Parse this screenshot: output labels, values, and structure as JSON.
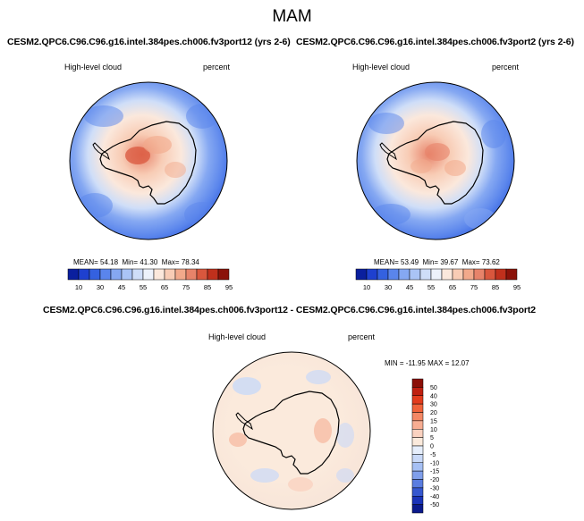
{
  "figure": {
    "title": "MAM"
  },
  "panels": [
    {
      "title": "CESM2.QPC6.C96.C96.g16.intel.384pes.ch006.fv3port12 (yrs 2-6)",
      "variable": "High-level cloud",
      "units": "percent",
      "stats": {
        "mean_label": "MEAN=",
        "mean": "54.18",
        "min_label": "Min=",
        "min": "41.30",
        "max_label": "Max=",
        "max": "78.34"
      },
      "colorbar": {
        "labels": [
          "10",
          "30",
          "45",
          "55",
          "65",
          "75",
          "85",
          "95"
        ],
        "colors": [
          "#0a1f9e",
          "#1e40cf",
          "#3461e0",
          "#5a85ec",
          "#85a8f2",
          "#aac4f6",
          "#cfdef8",
          "#edf2fb",
          "#fbe8dc",
          "#f8ccb5",
          "#f2a98b",
          "#e7836a",
          "#d9573d",
          "#c0301c",
          "#8b1209"
        ]
      }
    },
    {
      "title": "CESM2.QPC6.C96.C96.g16.intel.384pes.ch006.fv3port2 (yrs 2-6)",
      "variable": "High-level cloud",
      "units": "percent",
      "stats": {
        "mean_label": "MEAN=",
        "mean": "53.49",
        "min_label": "Min=",
        "min": "39.67",
        "max_label": "Max=",
        "max": "73.62"
      },
      "colorbar": {
        "labels": [
          "10",
          "30",
          "45",
          "55",
          "65",
          "75",
          "85",
          "95"
        ],
        "colors": [
          "#0a1f9e",
          "#1e40cf",
          "#3461e0",
          "#5a85ec",
          "#85a8f2",
          "#aac4f6",
          "#cfdef8",
          "#edf2fb",
          "#fbe8dc",
          "#f8ccb5",
          "#f2a98b",
          "#e7836a",
          "#d9573d",
          "#c0301c",
          "#8b1209"
        ]
      }
    },
    {
      "title": "CESM2.QPC6.C96.C96.g16.intel.384pes.ch006.fv3port12 - CESM2.QPC6.C96.C96.g16.intel.384pes.ch006.fv3port2",
      "variable": "High-level cloud",
      "units": "percent",
      "stats": {
        "text": "MIN = -11.95  MAX =  12.07"
      },
      "colorbar": {
        "labels": [
          "50",
          "40",
          "30",
          "20",
          "15",
          "10",
          "5",
          "0",
          "-5",
          "-10",
          "-15",
          "-20",
          "-30",
          "-40",
          "-50"
        ],
        "colors": [
          "#8b0f07",
          "#bf1f10",
          "#e23b1d",
          "#f0623a",
          "#f48865",
          "#f7ad92",
          "#fad2c0",
          "#fbeadc",
          "#e6eefb",
          "#c9d9f8",
          "#a6c0f4",
          "#809feb",
          "#5a7de0",
          "#3557cf",
          "#1a33b8",
          "#0b1a8c"
        ]
      }
    }
  ]
}
